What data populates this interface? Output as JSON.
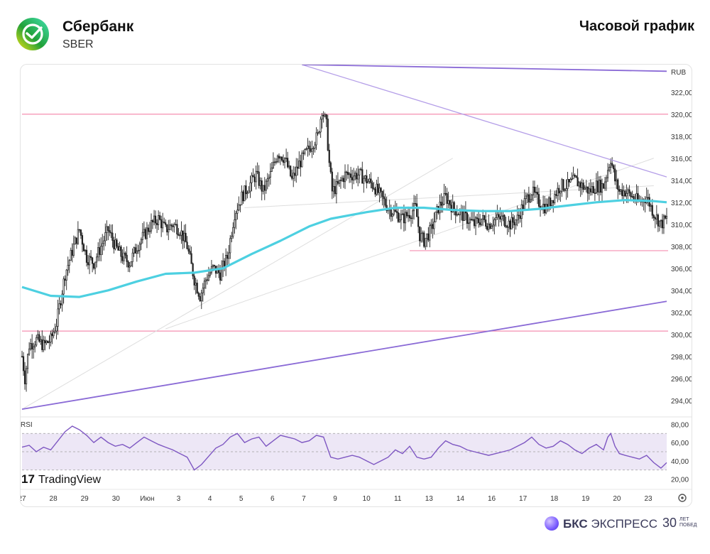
{
  "header": {
    "company": "Сбербанк",
    "ticker": "SBER",
    "title": "Часовой график"
  },
  "footer": {
    "brand_bold": "БКС",
    "brand_rest": "ЭКСПРЕСС",
    "anniv_number": "30",
    "anniv_text": "ЛЕТ ПОБЕД"
  },
  "watermark": "TradingView",
  "colors": {
    "up": "#222222",
    "down": "#222222",
    "ma": "#4dd0e1",
    "level": "#f48fb1",
    "trend_main": "#8a6ad6",
    "trend_light": "#b49ee8",
    "fan": "#dddddd",
    "rsi_line": "#7e57c2",
    "rsi_band": "#ede7f6"
  },
  "chart_data": [
    {
      "type": "candlestick",
      "currency": "RUB",
      "y_ticks": [
        "322,00",
        "320,00",
        "318,00",
        "316,00",
        "314,00",
        "312,00",
        "310,00",
        "308,00",
        "306,00",
        "304,00",
        "302,00",
        "300,00",
        "298,00",
        "296,00",
        "294,00"
      ],
      "x_ticks": [
        "27",
        "28",
        "29",
        "30",
        "Июн",
        "3",
        "4",
        "5",
        "6",
        "7",
        "9",
        "10",
        "11",
        "13",
        "14",
        "16",
        "17",
        "18",
        "19",
        "20",
        "23"
      ],
      "ylim": [
        292.5,
        324.5
      ],
      "horizontal_levels": [
        320.0,
        300.3,
        307.6
      ],
      "close_path": [
        [
          0,
          298.0
        ],
        [
          2,
          296.0
        ],
        [
          5,
          299.0
        ],
        [
          10,
          299.5
        ],
        [
          15,
          299.0
        ],
        [
          20,
          299.5
        ],
        [
          24,
          301.0
        ],
        [
          30,
          305.5
        ],
        [
          36,
          308.0
        ],
        [
          40,
          309.5
        ],
        [
          45,
          307.0
        ],
        [
          50,
          306.5
        ],
        [
          55,
          308.0
        ],
        [
          60,
          309.5
        ],
        [
          65,
          308.0
        ],
        [
          70,
          307.0
        ],
        [
          75,
          306.5
        ],
        [
          80,
          308.0
        ],
        [
          85,
          309.0
        ],
        [
          90,
          310.0
        ],
        [
          95,
          310.5
        ],
        [
          100,
          309.5
        ],
        [
          105,
          310.0
        ],
        [
          110,
          309.5
        ],
        [
          115,
          308.0
        ],
        [
          120,
          305.0
        ],
        [
          124,
          303.5
        ],
        [
          128,
          305.0
        ],
        [
          133,
          306.0
        ],
        [
          138,
          305.5
        ],
        [
          143,
          307.0
        ],
        [
          148,
          311.0
        ],
        [
          153,
          312.5
        ],
        [
          158,
          313.5
        ],
        [
          163,
          314.5
        ],
        [
          168,
          313.0
        ],
        [
          173,
          314.5
        ],
        [
          178,
          316.5
        ],
        [
          183,
          316.0
        ],
        [
          188,
          314.0
        ],
        [
          193,
          315.5
        ],
        [
          198,
          316.5
        ],
        [
          203,
          317.5
        ],
        [
          206,
          318.0
        ],
        [
          209,
          320.5
        ],
        [
          212,
          319.0
        ],
        [
          214,
          315.5
        ],
        [
          216,
          313.0
        ],
        [
          220,
          313.5
        ],
        [
          225,
          314.5
        ],
        [
          230,
          314.5
        ],
        [
          235,
          314.5
        ],
        [
          240,
          314.0
        ],
        [
          245,
          313.5
        ],
        [
          250,
          312.5
        ],
        [
          255,
          311.5
        ],
        [
          260,
          311.0
        ],
        [
          265,
          310.5
        ],
        [
          270,
          311.0
        ],
        [
          274,
          311.5
        ],
        [
          277,
          309.0
        ],
        [
          280,
          308.5
        ],
        [
          285,
          309.5
        ],
        [
          290,
          311.5
        ],
        [
          295,
          312.5
        ],
        [
          300,
          311.5
        ],
        [
          305,
          311.0
        ],
        [
          310,
          310.5
        ],
        [
          315,
          310.0
        ],
        [
          320,
          310.5
        ],
        [
          325,
          310.0
        ],
        [
          330,
          310.5
        ],
        [
          335,
          310.5
        ],
        [
          340,
          310.0
        ],
        [
          345,
          310.5
        ],
        [
          350,
          312.0
        ],
        [
          355,
          313.0
        ],
        [
          360,
          312.0
        ],
        [
          365,
          311.5
        ],
        [
          370,
          312.5
        ],
        [
          375,
          313.5
        ],
        [
          380,
          313.5
        ],
        [
          385,
          314.0
        ],
        [
          390,
          313.5
        ],
        [
          395,
          313.0
        ],
        [
          400,
          313.5
        ],
        [
          405,
          313.5
        ],
        [
          408,
          315.0
        ],
        [
          410,
          316.0
        ],
        [
          413,
          314.0
        ],
        [
          416,
          313.0
        ],
        [
          420,
          313.0
        ],
        [
          425,
          312.5
        ],
        [
          430,
          312.0
        ],
        [
          435,
          312.5
        ],
        [
          440,
          311.0
        ],
        [
          445,
          310.0
        ],
        [
          449,
          310.5
        ]
      ],
      "ma_path": [
        [
          0,
          304.3
        ],
        [
          20,
          303.5
        ],
        [
          40,
          303.4
        ],
        [
          60,
          304.0
        ],
        [
          80,
          304.8
        ],
        [
          100,
          305.5
        ],
        [
          120,
          305.6
        ],
        [
          140,
          306.0
        ],
        [
          160,
          307.3
        ],
        [
          180,
          308.5
        ],
        [
          200,
          309.8
        ],
        [
          215,
          310.5
        ],
        [
          240,
          311.1
        ],
        [
          260,
          311.5
        ],
        [
          280,
          311.5
        ],
        [
          300,
          311.3
        ],
        [
          320,
          311.2
        ],
        [
          340,
          311.2
        ],
        [
          360,
          311.4
        ],
        [
          380,
          311.7
        ],
        [
          400,
          312.0
        ],
        [
          420,
          312.2
        ],
        [
          440,
          312.1
        ],
        [
          449,
          312.0
        ]
      ],
      "trendlines_y_at_x": [
        {
          "name_color": "trend_main",
          "from": [
            0,
            293.2
          ],
          "to": [
            449,
            303.0
          ]
        },
        {
          "name_color": "trend_light",
          "from": [
            195,
            324.5
          ],
          "to": [
            449,
            314.3
          ]
        },
        {
          "name_color": "trend_main",
          "from": [
            195,
            324.5
          ],
          "to": [
            449,
            323.9
          ]
        },
        {
          "name_color": "fan",
          "from": [
            0,
            293.2
          ],
          "to": [
            300,
            316.0
          ]
        },
        {
          "name_color": "fan",
          "from": [
            100,
            300.5
          ],
          "to": [
            440,
            316.0
          ]
        },
        {
          "name_color": "fan",
          "from": [
            155,
            311.5
          ],
          "to": [
            440,
            313.5
          ]
        }
      ]
    },
    {
      "type": "line",
      "name": "RSI",
      "y_ticks": [
        "80,00",
        "60,00",
        "40,00",
        "20,00"
      ],
      "ylim": [
        15,
        85
      ],
      "band": [
        30,
        70
      ],
      "midline": 50,
      "path": [
        [
          0,
          55
        ],
        [
          5,
          57
        ],
        [
          10,
          50
        ],
        [
          15,
          55
        ],
        [
          20,
          52
        ],
        [
          25,
          62
        ],
        [
          30,
          72
        ],
        [
          35,
          78
        ],
        [
          40,
          74
        ],
        [
          45,
          68
        ],
        [
          50,
          60
        ],
        [
          55,
          66
        ],
        [
          60,
          60
        ],
        [
          65,
          56
        ],
        [
          70,
          58
        ],
        [
          75,
          54
        ],
        [
          80,
          60
        ],
        [
          85,
          66
        ],
        [
          90,
          62
        ],
        [
          95,
          58
        ],
        [
          100,
          55
        ],
        [
          105,
          52
        ],
        [
          110,
          48
        ],
        [
          115,
          44
        ],
        [
          120,
          30
        ],
        [
          125,
          36
        ],
        [
          130,
          45
        ],
        [
          135,
          54
        ],
        [
          140,
          58
        ],
        [
          145,
          66
        ],
        [
          150,
          70
        ],
        [
          155,
          60
        ],
        [
          160,
          64
        ],
        [
          165,
          66
        ],
        [
          170,
          56
        ],
        [
          175,
          62
        ],
        [
          180,
          68
        ],
        [
          185,
          66
        ],
        [
          190,
          64
        ],
        [
          195,
          60
        ],
        [
          200,
          62
        ],
        [
          205,
          68
        ],
        [
          210,
          66
        ],
        [
          215,
          44
        ],
        [
          220,
          42
        ],
        [
          225,
          44
        ],
        [
          230,
          46
        ],
        [
          235,
          44
        ],
        [
          240,
          40
        ],
        [
          245,
          36
        ],
        [
          250,
          40
        ],
        [
          255,
          44
        ],
        [
          260,
          52
        ],
        [
          265,
          48
        ],
        [
          270,
          56
        ],
        [
          275,
          44
        ],
        [
          280,
          42
        ],
        [
          285,
          44
        ],
        [
          290,
          54
        ],
        [
          295,
          62
        ],
        [
          300,
          58
        ],
        [
          305,
          56
        ],
        [
          310,
          52
        ],
        [
          315,
          50
        ],
        [
          320,
          48
        ],
        [
          325,
          46
        ],
        [
          330,
          48
        ],
        [
          335,
          50
        ],
        [
          340,
          52
        ],
        [
          345,
          56
        ],
        [
          350,
          60
        ],
        [
          355,
          66
        ],
        [
          360,
          58
        ],
        [
          365,
          54
        ],
        [
          370,
          56
        ],
        [
          375,
          62
        ],
        [
          380,
          58
        ],
        [
          385,
          52
        ],
        [
          390,
          48
        ],
        [
          395,
          54
        ],
        [
          400,
          58
        ],
        [
          405,
          52
        ],
        [
          408,
          66
        ],
        [
          410,
          70
        ],
        [
          413,
          56
        ],
        [
          416,
          48
        ],
        [
          420,
          46
        ],
        [
          425,
          44
        ],
        [
          430,
          42
        ],
        [
          435,
          46
        ],
        [
          440,
          38
        ],
        [
          445,
          32
        ],
        [
          449,
          38
        ]
      ]
    }
  ]
}
